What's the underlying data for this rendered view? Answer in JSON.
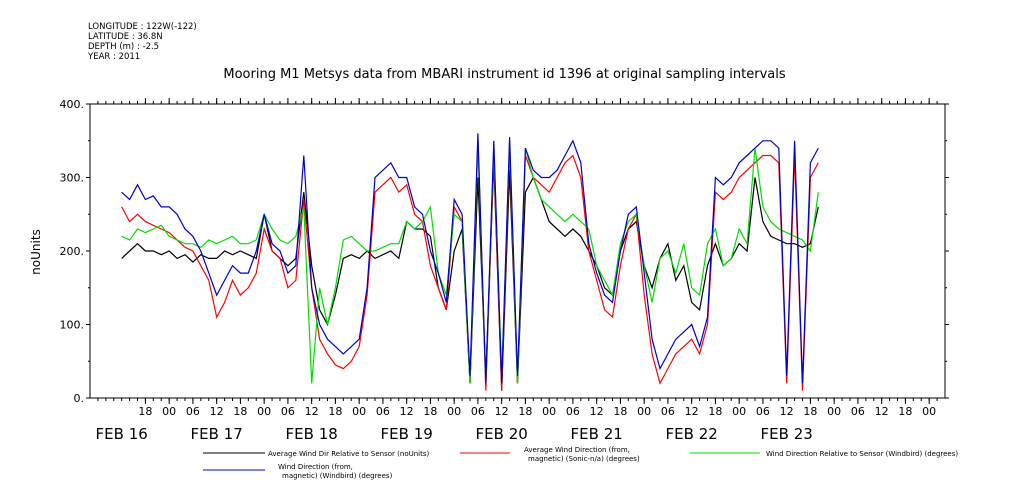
{
  "metadata": {
    "longitude": "LONGITUDE : 122W(-122)",
    "latitude": "LATITUDE : 36.8N",
    "depth": "DEPTH (m) : -2.5",
    "year": "YEAR : 2011"
  },
  "chart_data": {
    "type": "line",
    "title": "Mooring M1 Metsys data from MBARI instrument id 1396 at original sampling intervals",
    "ylabel": "noUnits",
    "xlabel": "",
    "ylim": [
      0,
      400
    ],
    "yticks": [
      0,
      100,
      200,
      300,
      400
    ],
    "ytick_labels": [
      "0.",
      "100.",
      "200.",
      "300.",
      "400."
    ],
    "xlim": [
      -8,
      208
    ],
    "hour_ticks": [
      {
        "x": 6,
        "label": "18"
      },
      {
        "x": 12,
        "label": "00"
      },
      {
        "x": 18,
        "label": "06"
      },
      {
        "x": 24,
        "label": "12"
      },
      {
        "x": 30,
        "label": "18"
      },
      {
        "x": 36,
        "label": "00"
      },
      {
        "x": 42,
        "label": "06"
      },
      {
        "x": 48,
        "label": "12"
      },
      {
        "x": 54,
        "label": "18"
      },
      {
        "x": 60,
        "label": "00"
      },
      {
        "x": 66,
        "label": "06"
      },
      {
        "x": 72,
        "label": "12"
      },
      {
        "x": 78,
        "label": "18"
      },
      {
        "x": 84,
        "label": "00"
      },
      {
        "x": 90,
        "label": "06"
      },
      {
        "x": 96,
        "label": "12"
      },
      {
        "x": 102,
        "label": "18"
      },
      {
        "x": 108,
        "label": "00"
      },
      {
        "x": 114,
        "label": "06"
      },
      {
        "x": 120,
        "label": "12"
      },
      {
        "x": 126,
        "label": "18"
      },
      {
        "x": 132,
        "label": "00"
      },
      {
        "x": 138,
        "label": "06"
      },
      {
        "x": 144,
        "label": "12"
      },
      {
        "x": 150,
        "label": "18"
      },
      {
        "x": 156,
        "label": "00"
      },
      {
        "x": 162,
        "label": "06"
      },
      {
        "x": 168,
        "label": "12"
      },
      {
        "x": 174,
        "label": "18"
      },
      {
        "x": 180,
        "label": "00"
      },
      {
        "x": 186,
        "label": "06"
      },
      {
        "x": 192,
        "label": "12"
      },
      {
        "x": 198,
        "label": "18"
      },
      {
        "x": 204,
        "label": "00"
      }
    ],
    "day_labels": [
      {
        "x": 0,
        "label": "FEB 16"
      },
      {
        "x": 24,
        "label": "FEB 17"
      },
      {
        "x": 48,
        "label": "FEB 18"
      },
      {
        "x": 72,
        "label": "FEB 19"
      },
      {
        "x": 96,
        "label": "FEB 20"
      },
      {
        "x": 120,
        "label": "FEB 21"
      },
      {
        "x": 144,
        "label": "FEB 22"
      },
      {
        "x": 168,
        "label": "FEB 23"
      }
    ],
    "series": [
      {
        "name": "Average Wind Dir Relative to Sensor (noUnits)",
        "color": "#000000",
        "x": [
          0,
          2,
          4,
          6,
          8,
          10,
          12,
          14,
          16,
          18,
          20,
          22,
          24,
          26,
          28,
          30,
          32,
          34,
          36,
          38,
          40,
          42,
          44,
          46,
          48,
          50,
          52,
          54,
          56,
          58,
          60,
          62,
          64,
          66,
          68,
          70,
          72,
          74,
          76,
          78,
          80,
          82,
          84,
          86,
          88,
          90,
          92,
          94,
          96,
          98,
          100,
          102,
          104,
          106,
          108,
          110,
          112,
          114,
          116,
          118,
          120,
          122,
          124,
          126,
          128,
          130,
          132,
          134,
          136,
          138,
          140,
          142,
          144,
          146,
          148,
          150,
          152,
          154,
          156,
          158,
          160,
          162,
          164,
          166,
          168,
          170,
          172,
          174,
          176
        ],
        "values": [
          190,
          200,
          210,
          200,
          200,
          195,
          200,
          190,
          195,
          185,
          195,
          190,
          190,
          200,
          195,
          200,
          195,
          190,
          250,
          200,
          190,
          180,
          190,
          280,
          180,
          120,
          100,
          140,
          190,
          195,
          190,
          200,
          190,
          195,
          200,
          190,
          240,
          230,
          230,
          220,
          150,
          120,
          200,
          230,
          20,
          300,
          30,
          320,
          10,
          310,
          20,
          280,
          300,
          270,
          240,
          230,
          220,
          230,
          220,
          200,
          180,
          150,
          140,
          200,
          230,
          240,
          180,
          150,
          190,
          210,
          160,
          180,
          130,
          120,
          180,
          210,
          180,
          190,
          210,
          200,
          300,
          240,
          220,
          215,
          210,
          210,
          205,
          210,
          260
        ]
      },
      {
        "name": "Average Wind Direction (from, magnetic) (Sonic-n/a) (degrees)",
        "color": "#ff0000",
        "x": [
          0,
          2,
          4,
          6,
          8,
          10,
          12,
          14,
          16,
          18,
          20,
          22,
          24,
          26,
          28,
          30,
          32,
          34,
          36,
          38,
          40,
          42,
          44,
          46,
          48,
          50,
          52,
          54,
          56,
          58,
          60,
          62,
          64,
          66,
          68,
          70,
          72,
          74,
          76,
          78,
          80,
          82,
          84,
          86,
          88,
          90,
          92,
          94,
          96,
          98,
          100,
          102,
          104,
          106,
          108,
          110,
          112,
          114,
          116,
          118,
          120,
          122,
          124,
          126,
          128,
          130,
          132,
          134,
          136,
          138,
          140,
          142,
          144,
          146,
          148,
          150,
          152,
          154,
          156,
          158,
          160,
          162,
          164,
          166,
          168,
          170,
          172,
          174,
          176
        ],
        "values": [
          260,
          240,
          250,
          240,
          235,
          230,
          225,
          215,
          205,
          200,
          180,
          160,
          110,
          130,
          160,
          140,
          150,
          170,
          230,
          200,
          190,
          150,
          160,
          270,
          150,
          80,
          60,
          45,
          40,
          50,
          70,
          140,
          280,
          290,
          300,
          280,
          290,
          250,
          240,
          180,
          150,
          120,
          260,
          240,
          20,
          350,
          10,
          330,
          10,
          340,
          20,
          330,
          300,
          290,
          280,
          300,
          320,
          330,
          300,
          200,
          160,
          120,
          110,
          180,
          230,
          250,
          140,
          60,
          20,
          40,
          60,
          70,
          80,
          60,
          100,
          280,
          270,
          280,
          300,
          310,
          320,
          330,
          330,
          320,
          20,
          330,
          10,
          300,
          320
        ]
      },
      {
        "name": "Wind Direction Relative to Sensor (Windbird) (degrees)",
        "color": "#00dd00",
        "x": [
          0,
          2,
          4,
          6,
          8,
          10,
          12,
          14,
          16,
          18,
          20,
          22,
          24,
          26,
          28,
          30,
          32,
          34,
          36,
          38,
          40,
          42,
          44,
          46,
          48,
          50,
          52,
          54,
          56,
          58,
          60,
          62,
          64,
          66,
          68,
          70,
          72,
          74,
          76,
          78,
          80,
          82,
          84,
          86,
          88,
          90,
          92,
          94,
          96,
          98,
          100,
          102,
          104,
          106,
          108,
          110,
          112,
          114,
          116,
          118,
          120,
          122,
          124,
          126,
          128,
          130,
          132,
          134,
          136,
          138,
          140,
          142,
          144,
          146,
          148,
          150,
          152,
          154,
          156,
          158,
          160,
          162,
          164,
          166,
          168,
          170,
          172,
          174,
          176
        ],
        "values": [
          220,
          215,
          230,
          225,
          230,
          235,
          220,
          215,
          210,
          210,
          205,
          215,
          210,
          215,
          220,
          210,
          210,
          215,
          250,
          230,
          215,
          210,
          220,
          260,
          20,
          150,
          100,
          150,
          215,
          220,
          210,
          200,
          200,
          205,
          210,
          210,
          240,
          230,
          240,
          260,
          170,
          140,
          250,
          240,
          20,
          350,
          20,
          340,
          30,
          350,
          20,
          340,
          300,
          270,
          260,
          250,
          240,
          250,
          240,
          230,
          180,
          160,
          140,
          210,
          240,
          250,
          180,
          130,
          190,
          200,
          170,
          210,
          150,
          140,
          210,
          230,
          180,
          190,
          230,
          210,
          340,
          260,
          240,
          230,
          225,
          220,
          215,
          200,
          280
        ]
      },
      {
        "name": "Wind Direction (from, magnetic) (Windbird) (degrees)",
        "color": "#0000cc",
        "x": [
          0,
          2,
          4,
          6,
          8,
          10,
          12,
          14,
          16,
          18,
          20,
          22,
          24,
          26,
          28,
          30,
          32,
          34,
          36,
          38,
          40,
          42,
          44,
          46,
          48,
          50,
          52,
          54,
          56,
          58,
          60,
          62,
          64,
          66,
          68,
          70,
          72,
          74,
          76,
          78,
          80,
          82,
          84,
          86,
          88,
          90,
          92,
          94,
          96,
          98,
          100,
          102,
          104,
          106,
          108,
          110,
          112,
          114,
          116,
          118,
          120,
          122,
          124,
          126,
          128,
          130,
          132,
          134,
          136,
          138,
          140,
          142,
          144,
          146,
          148,
          150,
          152,
          154,
          156,
          158,
          160,
          162,
          164,
          166,
          168,
          170,
          172,
          174,
          176
        ],
        "values": [
          280,
          270,
          290,
          270,
          275,
          260,
          260,
          250,
          230,
          220,
          200,
          170,
          140,
          160,
          180,
          170,
          170,
          200,
          250,
          210,
          200,
          170,
          180,
          330,
          150,
          100,
          80,
          70,
          60,
          70,
          80,
          150,
          300,
          310,
          320,
          300,
          300,
          260,
          250,
          200,
          170,
          130,
          270,
          250,
          30,
          360,
          20,
          350,
          20,
          355,
          30,
          340,
          310,
          300,
          300,
          310,
          330,
          350,
          320,
          210,
          170,
          140,
          130,
          200,
          250,
          260,
          170,
          80,
          40,
          60,
          80,
          90,
          100,
          70,
          110,
          300,
          290,
          300,
          320,
          330,
          340,
          350,
          350,
          340,
          30,
          350,
          20,
          320,
          340
        ]
      }
    ]
  },
  "legend": {
    "items": [
      {
        "label_line1": "Average Wind Dir Relative to Sensor (noUnits)",
        "label_line2": ""
      },
      {
        "label_line1": "Average Wind Direction (from,",
        "label_line2": "magnetic) (Sonic-n/a) (degrees)"
      },
      {
        "label_line1": "Wind Direction Relative to Sensor (Windbird) (degrees)",
        "label_line2": ""
      },
      {
        "label_line1": "Wind Direction (from,",
        "label_line2": "magnetic) (Windbird) (degrees)"
      }
    ]
  }
}
